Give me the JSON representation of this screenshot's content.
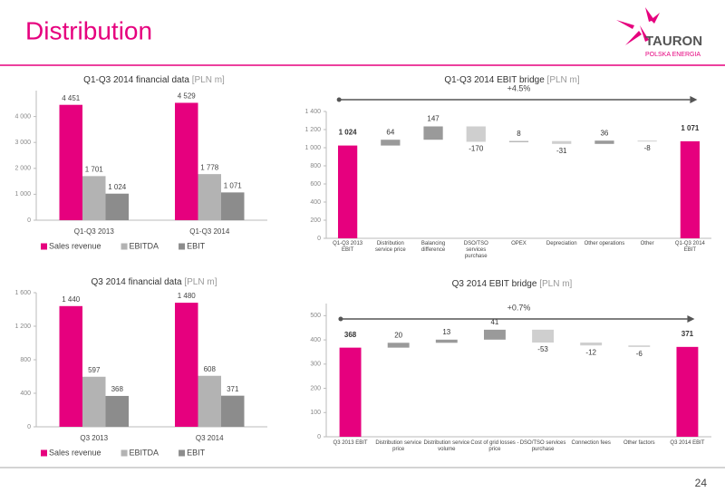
{
  "header": {
    "title": "Distribution",
    "logo": "TAURON",
    "logo_sub": "POLSKA ENERGIA"
  },
  "page_number": "24",
  "chart_data": [
    {
      "type": "bar",
      "title": "Q1-Q3 2014 financial data",
      "unit": "[PLN m]",
      "categories": [
        "Q1-Q3 2013",
        "Q1-Q3 2014"
      ],
      "series": [
        {
          "name": "Sales revenue",
          "color": "#e6007e",
          "values": [
            4451,
            4529
          ],
          "value_labels": [
            "4 451",
            "4 529"
          ]
        },
        {
          "name": "EBITDA",
          "color": "#b3b3b3",
          "values": [
            1701,
            1778
          ],
          "value_labels": [
            "1 701",
            "1 778"
          ]
        },
        {
          "name": "EBIT",
          "color": "#8c8c8c",
          "values": [
            1024,
            1071
          ],
          "value_labels": [
            "1 024",
            "1 071"
          ]
        }
      ],
      "ylim": [
        0,
        5000
      ],
      "yticks": [
        0,
        {
          "value": 1000,
          "label": "1 000"
        },
        {
          "value": 2000,
          "label": "2 000"
        },
        {
          "value": 3000,
          "label": "3 000"
        },
        {
          "value": 4000,
          "label": "4 000"
        }
      ]
    },
    {
      "type": "waterfall",
      "title": "Q1-Q3 2014 EBIT bridge",
      "unit": "[PLN m]",
      "categories": [
        "Q1-Q3 2013 EBIT",
        "Distribution service price",
        "Balancing difference",
        "DSO/TSO services purchase",
        "OPEX",
        "Depreciation",
        "Other operations",
        "Other",
        "Q1-Q3 2014 EBIT"
      ],
      "values": [
        1024,
        64,
        147,
        -170,
        8,
        -31,
        36,
        -8,
        1071
      ],
      "value_labels": [
        "1 024",
        "64",
        "147",
        "-170",
        "8",
        "-31",
        "36",
        "-8",
        "1 071"
      ],
      "colors": {
        "total": "#e6007e",
        "increase": "#9a9a9a",
        "decrease": "#cfcfcf"
      },
      "annotation": "+4.5%",
      "ylim": [
        0,
        1400
      ],
      "yticks": [
        0,
        200,
        400,
        600,
        800,
        {
          "value": 1000,
          "label": "1 000"
        },
        {
          "value": 1200,
          "label": "1 200"
        },
        {
          "value": 1400,
          "label": "1 400"
        }
      ]
    },
    {
      "type": "bar",
      "title": "Q3 2014 financial data",
      "unit": "[PLN m]",
      "categories": [
        "Q3 2013",
        "Q3 2014"
      ],
      "series": [
        {
          "name": "Sales revenue",
          "color": "#e6007e",
          "values": [
            1440,
            1480
          ],
          "value_labels": [
            "1 440",
            "1 480"
          ]
        },
        {
          "name": "EBITDA",
          "color": "#b3b3b3",
          "values": [
            597,
            608
          ]
        },
        {
          "name": "EBIT",
          "color": "#8c8c8c",
          "values": [
            368,
            371
          ]
        }
      ],
      "ylim": [
        0,
        1600
      ],
      "yticks": [
        0,
        400,
        800,
        {
          "value": 1200,
          "label": "1 200"
        },
        {
          "value": 1600,
          "label": "1 600"
        }
      ]
    },
    {
      "type": "waterfall",
      "title": "Q3 2014 EBIT bridge",
      "unit": "[PLN m]",
      "categories": [
        "Q3 2013 EBIT",
        "Distribution service price",
        "Distribution service volume",
        "Cost of grid losses - price",
        "DSO/TSO services purchase",
        "Connection fees",
        "Other factors",
        "Q3 2014 EBIT"
      ],
      "values": [
        368,
        20,
        13,
        41,
        -53,
        -12,
        -6,
        371
      ],
      "colors": {
        "total": "#e6007e",
        "increase": "#9a9a9a",
        "decrease": "#cfcfcf"
      },
      "annotation": "+0.7%",
      "ylim": [
        0,
        550
      ],
      "yticks": [
        0,
        100,
        200,
        300,
        400,
        500
      ]
    }
  ]
}
